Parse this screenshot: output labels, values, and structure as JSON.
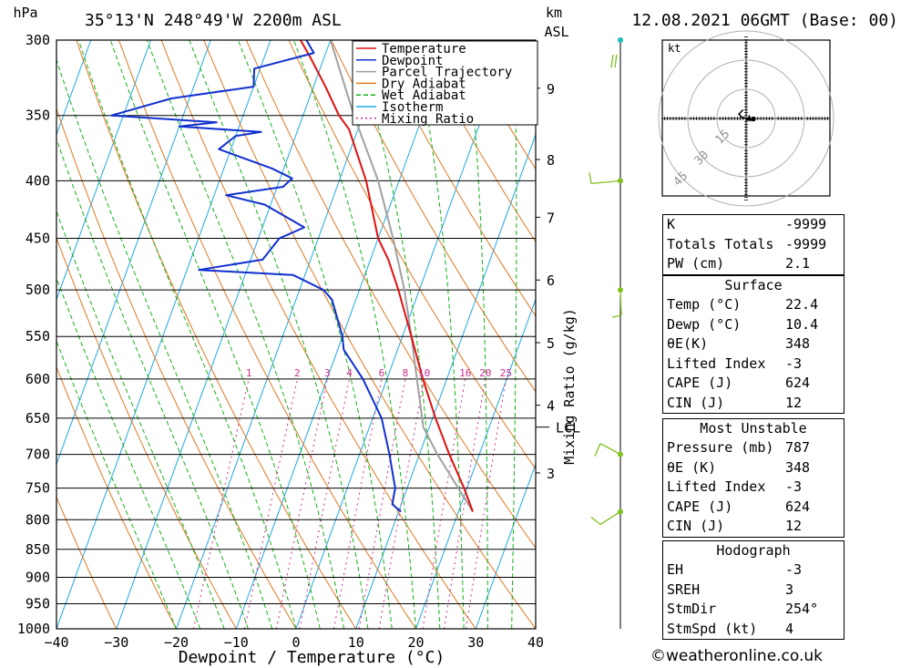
{
  "header": {
    "location": "35°13'N 248°49'W 2200m ASL",
    "datetime": "12.08.2021 06GMT (Base: 00)",
    "hpa_label": "hPa",
    "km_label": "km",
    "asl_label": "ASL"
  },
  "legend": [
    "Temperature",
    "Dewpoint",
    "Parcel Trajectory",
    "Dry Adiabat",
    "Wet Adiabat",
    "Isotherm",
    "Mixing Ratio"
  ],
  "colors": {
    "temperature": "#e01010",
    "dewpoint": "#1030d0",
    "parcel": "#a0a0a0",
    "dry_adiabat": "#e07820",
    "wet_adiabat": "#18b018",
    "isotherm": "#20a8e0",
    "mixing_ratio": "#d02890",
    "wind": "#80c020"
  },
  "chart_data": {
    "type": "skew-t",
    "xlabel": "Dewpoint / Temperature (°C)",
    "ylabel": "hPa",
    "mixing_ratio_label": "Mixing Ratio (g/kg)",
    "xlim": [
      -40,
      40
    ],
    "ylim": [
      1000,
      300
    ],
    "x_ticks": [
      "−40",
      "−30",
      "−20",
      "−10",
      "0",
      "10",
      "20",
      "30",
      "40"
    ],
    "pressure_levels": [
      300,
      350,
      400,
      450,
      500,
      550,
      600,
      650,
      700,
      750,
      800,
      850,
      900,
      950,
      1000
    ],
    "km_ticks": [
      {
        "label": "9",
        "p": 331
      },
      {
        "label": "8",
        "p": 383
      },
      {
        "label": "7",
        "p": 431
      },
      {
        "label": "6",
        "p": 490
      },
      {
        "label": "5",
        "p": 557
      },
      {
        "label": "4",
        "p": 633
      },
      {
        "label": "3",
        "p": 727
      }
    ],
    "lcl": {
      "label": "LCL",
      "p": 662
    },
    "mixing_ratio_values": [
      "1",
      "2",
      "3",
      "4",
      "6",
      "8",
      "10",
      "16",
      "20",
      "25"
    ],
    "temperature": [
      {
        "p": 787,
        "t": 22.4
      },
      {
        "p": 750,
        "t": 19.5
      },
      {
        "p": 700,
        "t": 15.0
      },
      {
        "p": 650,
        "t": 10.5
      },
      {
        "p": 600,
        "t": 6.0
      },
      {
        "p": 550,
        "t": 1.5
      },
      {
        "p": 500,
        "t": -3.5
      },
      {
        "p": 470,
        "t": -7.0
      },
      {
        "p": 450,
        "t": -10.0
      },
      {
        "p": 400,
        "t": -15.5
      },
      {
        "p": 360,
        "t": -21.5
      },
      {
        "p": 350,
        "t": -24.0
      },
      {
        "p": 330,
        "t": -28.0
      },
      {
        "p": 310,
        "t": -32.5
      },
      {
        "p": 300,
        "t": -35.0
      }
    ],
    "dewpoint": [
      {
        "p": 787,
        "t": 10.4
      },
      {
        "p": 775,
        "t": 8.5
      },
      {
        "p": 750,
        "t": 8.0
      },
      {
        "p": 700,
        "t": 5.0
      },
      {
        "p": 650,
        "t": 1.5
      },
      {
        "p": 600,
        "t": -4.0
      },
      {
        "p": 565,
        "t": -9.0
      },
      {
        "p": 550,
        "t": -10.0
      },
      {
        "p": 510,
        "t": -14.0
      },
      {
        "p": 500,
        "t": -16.0
      },
      {
        "p": 485,
        "t": -22.0
      },
      {
        "p": 480,
        "t": -38.0
      },
      {
        "p": 470,
        "t": -28.0
      },
      {
        "p": 450,
        "t": -26.5
      },
      {
        "p": 440,
        "t": -23.0
      },
      {
        "p": 420,
        "t": -31.0
      },
      {
        "p": 412,
        "t": -38.0
      },
      {
        "p": 405,
        "t": -29.0
      },
      {
        "p": 398,
        "t": -28.0
      },
      {
        "p": 390,
        "t": -32.0
      },
      {
        "p": 375,
        "t": -42.0
      },
      {
        "p": 365,
        "t": -40.0
      },
      {
        "p": 362,
        "t": -36.0
      },
      {
        "p": 358,
        "t": -50.0
      },
      {
        "p": 355,
        "t": -44.0
      },
      {
        "p": 350,
        "t": -62.0
      },
      {
        "p": 338,
        "t": -53.0
      },
      {
        "p": 330,
        "t": -40.0
      },
      {
        "p": 318,
        "t": -41.0
      },
      {
        "p": 308,
        "t": -32.0
      },
      {
        "p": 300,
        "t": -34.0
      }
    ],
    "parcel": [
      {
        "p": 787,
        "t": 22.4
      },
      {
        "p": 700,
        "t": 13.0
      },
      {
        "p": 662,
        "t": 9.0
      },
      {
        "p": 600,
        "t": 5.0
      },
      {
        "p": 550,
        "t": 1.5
      },
      {
        "p": 500,
        "t": -2.5
      },
      {
        "p": 450,
        "t": -7.5
      },
      {
        "p": 400,
        "t": -13.5
      },
      {
        "p": 350,
        "t": -21.5
      },
      {
        "p": 300,
        "t": -30.0
      }
    ],
    "wind_barbs": [
      {
        "p": 300,
        "dir": "calm"
      },
      {
        "p": 400,
        "dir": "W"
      },
      {
        "p": 500,
        "dir": "S"
      },
      {
        "p": 700,
        "dir": "NW"
      },
      {
        "p": 787,
        "dir": "SW"
      }
    ],
    "hodograph": {
      "unit_label": "kt",
      "ring_labels": [
        "15",
        "30",
        "45"
      ],
      "points": [
        [
          0,
          0
        ],
        [
          -1.5,
          0.5
        ],
        [
          -2.5,
          1.5
        ],
        [
          -1,
          3
        ]
      ]
    }
  },
  "indices": {
    "general": [
      {
        "label": "K",
        "value": "-9999"
      },
      {
        "label": "Totals Totals",
        "value": "-9999"
      },
      {
        "label": "PW (cm)",
        "value": "2.1"
      }
    ],
    "surface_title": "Surface",
    "surface": [
      {
        "label": "Temp (°C)",
        "value": "22.4"
      },
      {
        "label": "Dewp (°C)",
        "value": "10.4"
      },
      {
        "label": "θE(K)",
        "value": "348"
      },
      {
        "label": "Lifted Index",
        "value": "-3"
      },
      {
        "label": "CAPE (J)",
        "value": "624"
      },
      {
        "label": "CIN (J)",
        "value": "12"
      }
    ],
    "mu_title": "Most Unstable",
    "mu": [
      {
        "label": "Pressure (mb)",
        "value": "787"
      },
      {
        "label": "θE (K)",
        "value": "348"
      },
      {
        "label": "Lifted Index",
        "value": "-3"
      },
      {
        "label": "CAPE (J)",
        "value": "624"
      },
      {
        "label": "CIN (J)",
        "value": "12"
      }
    ],
    "hodo_title": "Hodograph",
    "hodo": [
      {
        "label": "EH",
        "value": "-3"
      },
      {
        "label": "SREH",
        "value": "3"
      },
      {
        "label": "StmDir",
        "value": "254°"
      },
      {
        "label": "StmSpd (kt)",
        "value": "4"
      }
    ]
  },
  "credit": "©weatheronline.co.uk"
}
